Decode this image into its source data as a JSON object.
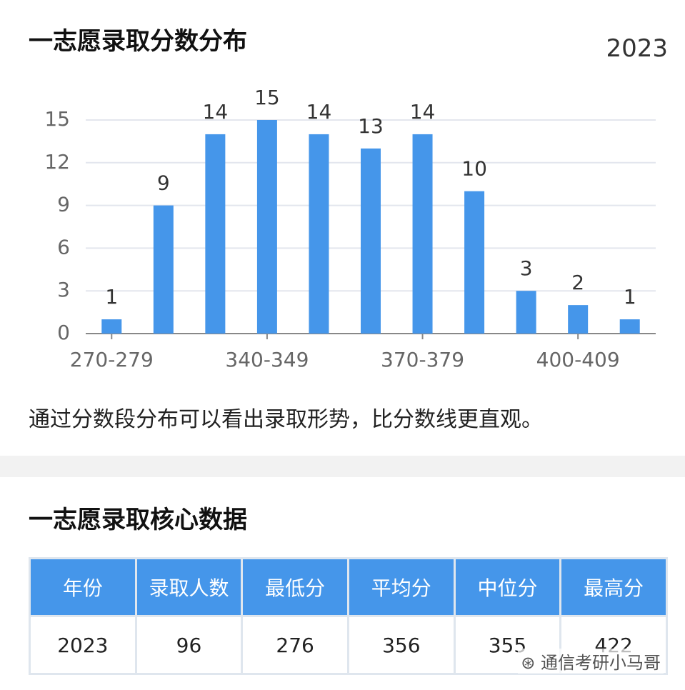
{
  "title": "一志愿录取分数分布",
  "year": "2023",
  "caption": "通过分数段分布可以看出录取形势，比分数线更直观。",
  "chart_data": {
    "type": "bar",
    "categories": [
      "270-279",
      null,
      null,
      "340-349",
      null,
      null,
      "370-379",
      null,
      null,
      "400-409",
      null
    ],
    "values": [
      1,
      9,
      14,
      15,
      14,
      13,
      14,
      10,
      3,
      2,
      1
    ],
    "color": "#4596ea",
    "ylim": [
      0,
      15
    ],
    "yticks": [
      0,
      3,
      6,
      9,
      12,
      15
    ],
    "grid": true
  },
  "section2_title": "一志愿录取核心数据",
  "table": {
    "header": [
      "年份",
      "录取人数",
      "最低分",
      "平均分",
      "中位分",
      "最高分"
    ],
    "rows": [
      [
        "2023",
        "96",
        "276",
        "356",
        "355",
        "422"
      ]
    ]
  },
  "watermark": "通信考研小马哥"
}
